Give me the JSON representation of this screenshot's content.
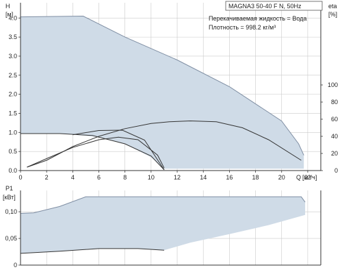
{
  "chart_data": [
    {
      "id": "head",
      "type": "area",
      "title": "MAGNA3 50-40 F N, 50Hz",
      "annotations": [
        "Перекачиваемая жидкость = Вода",
        "Плотность = 998.2 кг/м³"
      ],
      "ylabel": "H",
      "ylabel_unit": "[м]",
      "y2label": "eta",
      "y2label_unit": "[%]",
      "xlabel": "Q",
      "xlabel_unit": "[м³/ч]",
      "xlim": [
        0,
        23
      ],
      "ylim": [
        0,
        4.4
      ],
      "y2lim": [
        0,
        100
      ],
      "x_ticks": [
        "0",
        "2",
        "4",
        "6",
        "8",
        "10",
        "12",
        "14",
        "16",
        "18",
        "20",
        "22"
      ],
      "y_ticks": [
        "0.0",
        "0.5",
        "1.0",
        "1.5",
        "2.0",
        "2.5",
        "3.0",
        "3.5",
        "4.0"
      ],
      "y2_ticks": [
        "0",
        "20",
        "40",
        "60",
        "80",
        "100"
      ],
      "grid": true,
      "colors": {
        "fill": "#cfdbe7",
        "outline": "#7f8ea3",
        "curve": "#333333"
      },
      "envelope": {
        "max": [
          [
            0,
            4.03
          ],
          [
            4.8,
            4.05
          ],
          [
            8,
            3.5
          ],
          [
            12,
            2.9
          ],
          [
            16,
            2.2
          ],
          [
            20,
            1.3
          ],
          [
            21.3,
            0.7
          ],
          [
            21.7,
            0.4
          ]
        ],
        "min": [
          [
            0,
            0.97
          ],
          [
            3,
            0.97
          ],
          [
            6,
            0.88
          ],
          [
            8,
            0.7
          ],
          [
            10,
            0.35
          ],
          [
            11,
            0.05
          ],
          [
            21.7,
            0.05
          ]
        ]
      },
      "series": [
        {
          "type": "head",
          "values": [
            [
              0,
              0.97
            ],
            [
              3,
              0.97
            ],
            [
              5.5,
              0.92
            ],
            [
              8,
              0.7
            ],
            [
              10,
              0.38
            ],
            [
              11,
              0.02
            ]
          ]
        },
        {
          "type": "head",
          "values": [
            [
              4,
              0.94
            ],
            [
              6,
              1.05
            ],
            [
              7.8,
              1.06
            ],
            [
              9.5,
              0.8
            ],
            [
              11,
              0.02
            ]
          ]
        },
        {
          "type": "efficiency",
          "values": [
            [
              0.5,
              4
            ],
            [
              2,
              12
            ],
            [
              4,
              28
            ],
            [
              6,
              40
            ],
            [
              8,
              49
            ],
            [
              10,
              55
            ],
            [
              11.4,
              57
            ],
            [
              13,
              58
            ],
            [
              15,
              57
            ],
            [
              17,
              50
            ],
            [
              19,
              36
            ],
            [
              21.5,
              12
            ]
          ]
        },
        {
          "type": "efficiency",
          "values": [
            [
              0.5,
              4
            ],
            [
              2,
              14
            ],
            [
              4,
              27
            ],
            [
              6,
              36
            ],
            [
              7.5,
              39
            ],
            [
              9,
              36
            ],
            [
              10.5,
              18
            ],
            [
              11,
              3
            ]
          ]
        }
      ]
    },
    {
      "id": "power",
      "type": "area",
      "ylabel": "P1",
      "ylabel_unit": "[кВт]",
      "xlim": [
        0,
        23
      ],
      "ylim": [
        0,
        0.14
      ],
      "y_ticks": [
        "0",
        "0,05",
        "0,10"
      ],
      "grid": true,
      "colors": {
        "fill": "#cfdbe7",
        "outline": "#7f8ea3",
        "curve": "#333333"
      },
      "envelope": {
        "max": [
          [
            0,
            0.097
          ],
          [
            1,
            0.098
          ],
          [
            3,
            0.11
          ],
          [
            5,
            0.128
          ],
          [
            21.5,
            0.128
          ],
          [
            21.8,
            0.118
          ]
        ],
        "min": [
          [
            0,
            0.022
          ],
          [
            3,
            0.026
          ],
          [
            6,
            0.031
          ],
          [
            9,
            0.031
          ],
          [
            11,
            0.028
          ],
          [
            13,
            0.042
          ],
          [
            16,
            0.058
          ],
          [
            19,
            0.075
          ],
          [
            21.8,
            0.094
          ]
        ]
      },
      "series": [
        {
          "type": "power",
          "values": [
            [
              0,
              0.022
            ],
            [
              3,
              0.026
            ],
            [
              6,
              0.031
            ],
            [
              9,
              0.031
            ],
            [
              11,
              0.028
            ]
          ]
        }
      ]
    }
  ]
}
